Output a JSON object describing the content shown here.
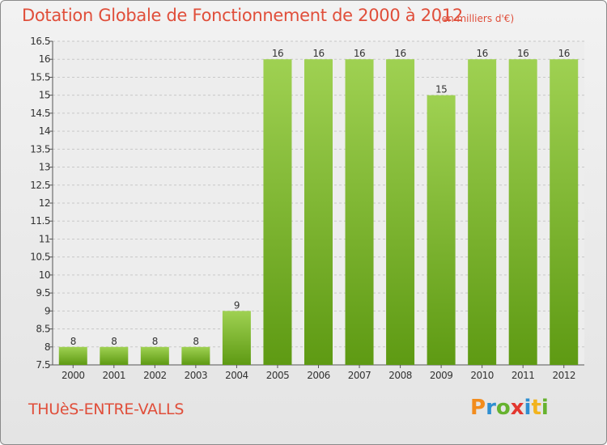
{
  "header": {
    "title": "Dotation Globale de Fonctionnement de 2000 à 2012",
    "subtitle": "(en milliers d'€)"
  },
  "footer": {
    "town": "THUèS-ENTRE-VALLS",
    "brand_letters": [
      "P",
      "r",
      "o",
      "x",
      "i",
      "t",
      "i"
    ]
  },
  "colors": {
    "title": "#e04e3a",
    "bar_top": "#9fd152",
    "bar_bottom": "#5e9a13",
    "grid": "#c8c8c8"
  },
  "chart_data": {
    "type": "bar",
    "title": "Dotation Globale de Fonctionnement de 2000 à 2012",
    "subtitle": "(en milliers d'€)",
    "xlabel": "",
    "ylabel": "",
    "categories": [
      "2000",
      "2001",
      "2002",
      "2003",
      "2004",
      "2005",
      "2006",
      "2007",
      "2008",
      "2009",
      "2010",
      "2011",
      "2012"
    ],
    "values": [
      8,
      8,
      8,
      8,
      9,
      16,
      16,
      16,
      16,
      15,
      16,
      16,
      16
    ],
    "ylim": [
      7.5,
      16.5
    ],
    "yticks": [
      "7.5",
      "8",
      "8.5",
      "9",
      "9.5",
      "10",
      "10.5",
      "11",
      "11.5",
      "12",
      "12.5",
      "13",
      "13.5",
      "14",
      "14.5",
      "15",
      "15.5",
      "16",
      "16.5"
    ],
    "grid": true,
    "legend": "none"
  }
}
